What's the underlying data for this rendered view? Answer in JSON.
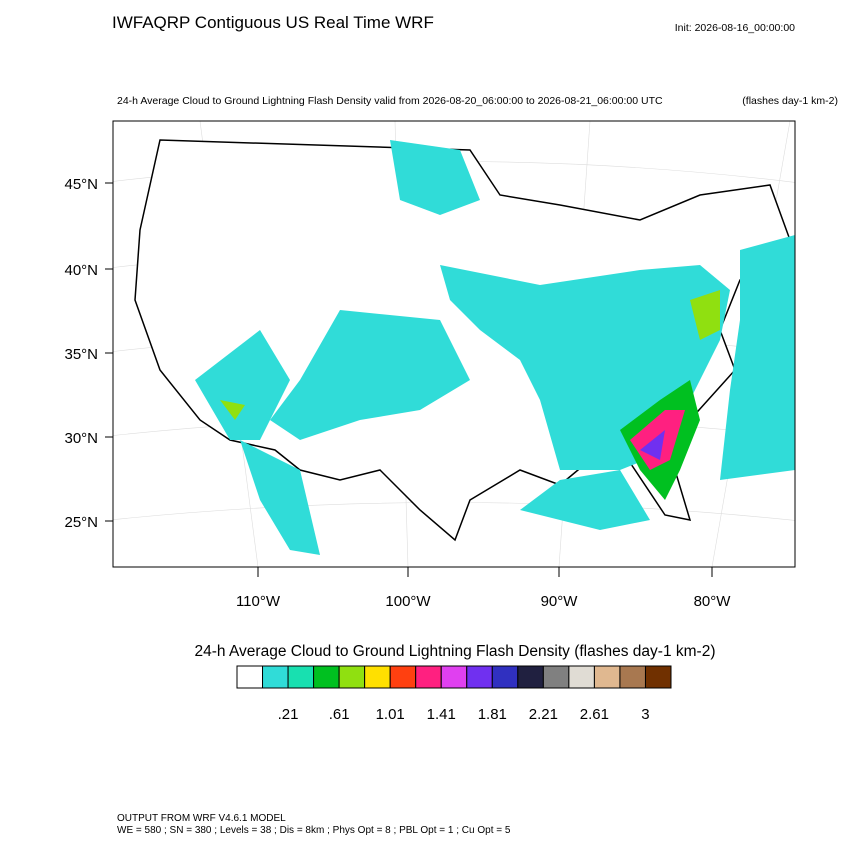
{
  "header": {
    "title": "IWFAQRP Contiguous US Real Time WRF",
    "init": "Init: 2026-08-16_00:00:00"
  },
  "map": {
    "subtitle": "24-h Average Cloud to Ground Lightning Flash Density valid from 2026-08-20_06:00:00 to 2026-08-21_06:00:00 UTC",
    "units": "(flashes day-1 km-2)",
    "lat_labels": [
      "45°N",
      "40°N",
      "35°N",
      "30°N",
      "25°N"
    ],
    "lon_labels": [
      "110°W",
      "100°W",
      "90°W",
      "80°W"
    ]
  },
  "colorbar": {
    "title": "24-h Average Cloud to Ground Lightning Flash Density  (flashes day-1 km-2)",
    "colors": [
      "#ffffff",
      "#30dcd8",
      "#18e0b0",
      "#00c020",
      "#90e010",
      "#ffe000",
      "#ff4010",
      "#ff2080",
      "#e040f0",
      "#7030f0",
      "#3030c0",
      "#202040",
      "#808080",
      "#e0dcd4",
      "#e0b890",
      "#a87850",
      "#703000"
    ],
    "labels": [
      ".21",
      ".61",
      "1.01",
      "1.41",
      "1.81",
      "2.21",
      "2.61",
      "3"
    ]
  },
  "footer": {
    "line1": "OUTPUT FROM WRF V4.6.1 MODEL",
    "line2": "WE = 580 ; SN = 380 ; Levels = 38 ; Dis = 8km ; Phys Opt = 8 ; PBL Opt = 1 ; Cu Opt = 5"
  }
}
